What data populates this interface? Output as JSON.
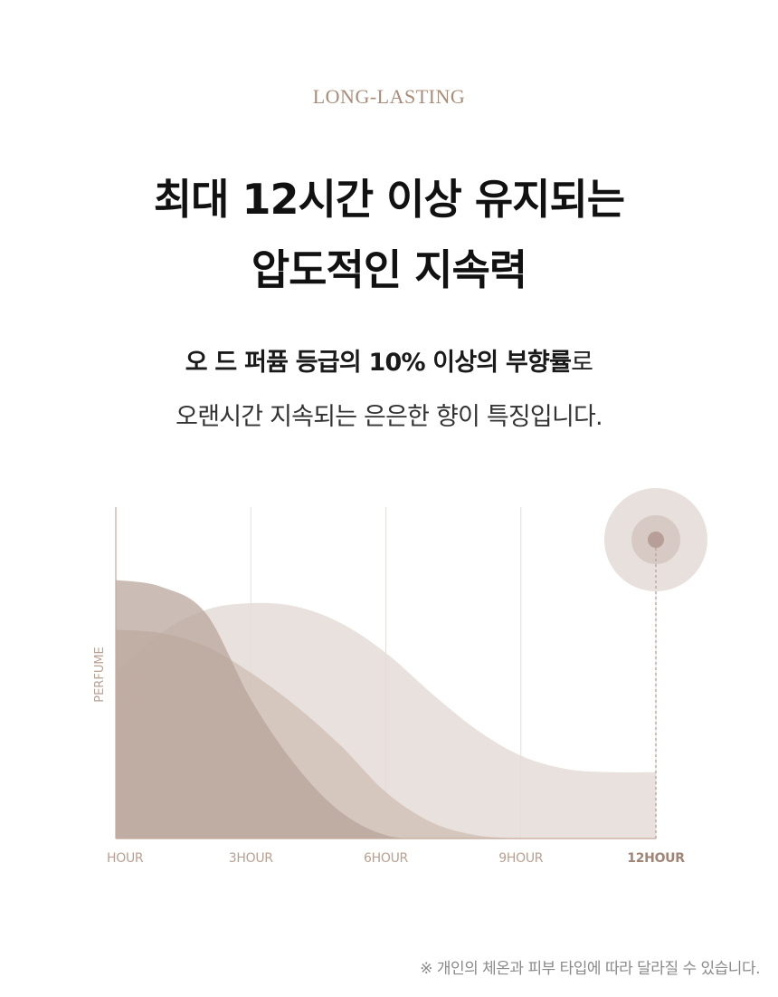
{
  "header": {
    "eyebrow": "LONG-LASTING",
    "title_line1": "최대 12시간 이상 유지되는",
    "title_line2": "압도적인 지속력"
  },
  "description": {
    "line1_bold": "오 드 퍼퓸 등급의 10% 이상의 부향률",
    "line1_rest": "로",
    "line2": "오랜시간 지속되는 은은한 향이 특징입니다."
  },
  "chart_data": {
    "type": "area",
    "ylabel": "PERFUME",
    "xlabel": "",
    "x_ticks": [
      "HOUR",
      "3HOUR",
      "6HOUR",
      "9HOUR",
      "12HOUR"
    ],
    "x_tick_values": [
      0,
      3,
      6,
      9,
      12
    ],
    "highlight_tick": "12HOUR",
    "xlim": [
      0,
      12
    ],
    "ylim": [
      0,
      100
    ],
    "grid": "vertical",
    "series": [
      {
        "color": "#b7a398",
        "x": [
          0,
          1,
          2,
          3,
          4,
          5,
          6,
          7,
          8,
          9
        ],
        "values": [
          78,
          76,
          68,
          42,
          22,
          8,
          1,
          0,
          0,
          0
        ]
      },
      {
        "color": "#cdbbb2",
        "x": [
          0,
          1,
          2,
          3,
          4,
          5,
          6,
          7,
          8,
          9
        ],
        "values": [
          63,
          62,
          58,
          50,
          40,
          28,
          14,
          5,
          1,
          0
        ]
      },
      {
        "color": "#e4dcd7",
        "x": [
          0,
          1,
          2,
          3,
          4,
          5,
          6,
          7,
          8,
          9,
          10,
          11,
          12
        ],
        "values": [
          50,
          62,
          69,
          71,
          70,
          65,
          56,
          44,
          33,
          25,
          21,
          20,
          20
        ]
      }
    ],
    "marker": {
      "x": 12,
      "colors": [
        "#e8e0dc",
        "#d7cac4",
        "#b79f97"
      ]
    },
    "axis_color": "#c4a99c",
    "grid_color": "#e6dfdb",
    "tick_color": "#b9a092",
    "highlight_color": "#a08577"
  },
  "footnote": "※ 개인의 체온과 피부 타입에 따라 달라질 수 있습니다."
}
